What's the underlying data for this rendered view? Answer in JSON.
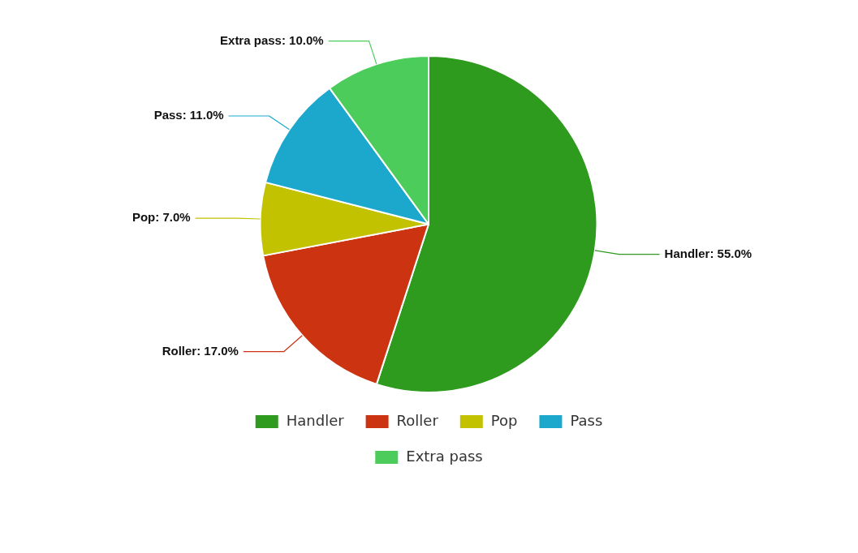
{
  "chart_data": {
    "type": "pie",
    "categories": [
      "Handler",
      "Roller",
      "Pop",
      "Pass",
      "Extra pass"
    ],
    "values": [
      55,
      17,
      7,
      11,
      10
    ],
    "colors": [
      "#2e9a1e",
      "#cc3311",
      "#c2c200",
      "#1ba8cc",
      "#4ccc5a"
    ],
    "value_labels": [
      "Handler: 55.0%",
      "Roller: 17.0%",
      "Pop: 7.0%",
      "Pass: 11.0%",
      "Extra pass: 10.0%"
    ],
    "legend": "bottom"
  }
}
